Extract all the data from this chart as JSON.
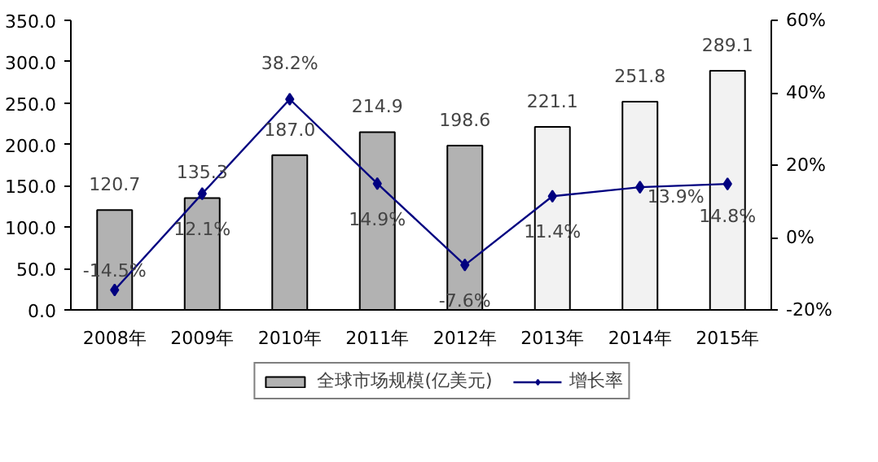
{
  "chart_data": {
    "type": "bar",
    "categories": [
      "2008年",
      "2009年",
      "2010年",
      "2011年",
      "2012年",
      "2013年",
      "2014年",
      "2015年"
    ],
    "series": [
      {
        "name": "全球市场规模(亿美元)",
        "colors": [
          "#b2b2b2",
          "#b2b2b2",
          "#b2b2b2",
          "#b2b2b2",
          "#b2b2b2",
          "#f2f2f2",
          "#f2f2f2",
          "#f2f2f2"
        ],
        "values": [
          120.7,
          135.3,
          187.0,
          214.9,
          198.6,
          221.1,
          251.8,
          289.1
        ],
        "value_labels": [
          "120.7",
          "135.3",
          "187.0",
          "214.9",
          "198.6",
          "221.1",
          "251.8",
          "289.1"
        ]
      },
      {
        "name": "增长率",
        "type": "line",
        "axis": "y2",
        "color": "#000080",
        "marker": "diamond",
        "line_style": "solid",
        "values": [
          -14.5,
          12.1,
          38.2,
          14.9,
          -7.6,
          11.4,
          13.9,
          14.8
        ],
        "value_labels": [
          "-14.5%",
          "12.1%",
          "38.2%",
          "14.9%",
          "-7.6%",
          "11.4%",
          "13.9%",
          "14.8%"
        ]
      }
    ],
    "ylim": [
      0,
      350
    ],
    "yticks": [
      {
        "value": 0,
        "label": "0.0"
      },
      {
        "value": 50,
        "label": "50.0"
      },
      {
        "value": 100,
        "label": "100.0"
      },
      {
        "value": 150,
        "label": "150.0"
      },
      {
        "value": 200,
        "label": "200.0"
      },
      {
        "value": 250,
        "label": "250.0"
      },
      {
        "value": 300,
        "label": "300.0"
      },
      {
        "value": 350,
        "label": "350.0"
      }
    ],
    "y2lim": [
      -20,
      60
    ],
    "y2ticks": [
      {
        "value": -20,
        "label": "-20%"
      },
      {
        "value": 0,
        "label": "0%"
      },
      {
        "value": 20,
        "label": "20%"
      },
      {
        "value": 40,
        "label": "40%"
      },
      {
        "value": 60,
        "label": "60%"
      }
    ],
    "grid": false,
    "legend": "bottom"
  }
}
